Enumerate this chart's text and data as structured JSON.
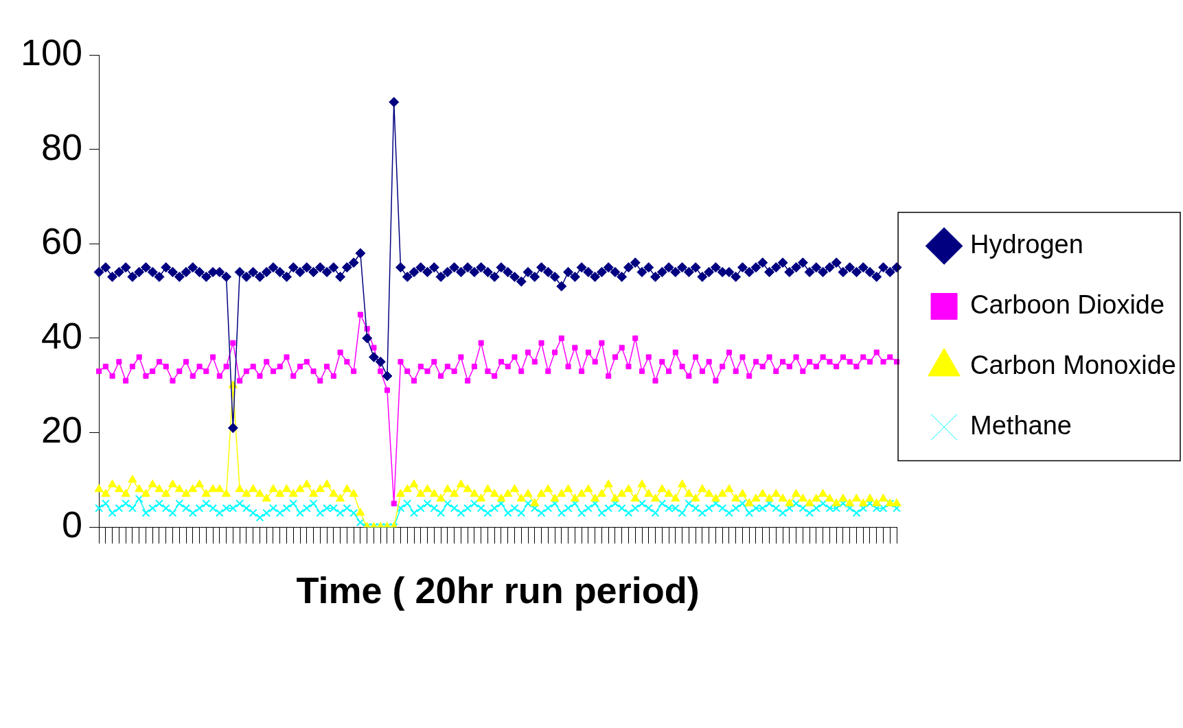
{
  "chart_data": {
    "type": "line",
    "xlabel": "Time ( 20hr run period)",
    "categories": [
      null,
      null,
      null,
      null,
      null,
      null,
      null,
      null,
      null,
      null,
      null,
      null,
      null,
      null,
      null,
      null,
      null,
      null,
      null,
      null,
      null,
      null,
      null,
      null,
      null,
      null,
      null,
      null,
      null,
      null,
      null,
      null,
      null,
      null,
      null,
      null,
      null,
      null,
      null,
      null,
      null,
      null,
      null,
      null,
      null,
      null,
      null,
      null,
      null,
      null,
      null,
      null,
      null,
      null,
      null,
      null,
      null,
      null,
      null,
      null,
      null,
      null,
      null,
      null,
      null,
      null,
      null,
      null,
      null,
      null,
      null,
      null,
      null,
      null,
      null,
      null,
      null,
      null,
      null,
      null,
      null,
      null,
      null,
      null,
      null,
      null,
      null,
      null,
      null,
      null,
      null,
      null,
      null,
      null,
      null,
      null,
      null,
      null,
      null,
      null,
      null,
      null,
      null,
      null,
      null,
      null,
      null,
      null,
      null,
      null,
      null,
      null,
      null,
      null,
      null,
      null,
      null,
      null,
      null,
      null
    ],
    "ylim": [
      0,
      100
    ],
    "yticks": [
      0,
      20,
      40,
      60,
      80,
      100
    ],
    "tick_labels": "y",
    "legend": "right",
    "line_style": "solid",
    "series": [
      {
        "name": "Hydrogen",
        "color": "#000080",
        "marker": "diamond",
        "values": [
          54,
          55,
          53,
          54,
          55,
          53,
          54,
          55,
          54,
          53,
          55,
          54,
          53,
          54,
          55,
          54,
          53,
          54,
          54,
          53,
          21,
          54,
          53,
          54,
          53,
          54,
          55,
          54,
          53,
          55,
          54,
          55,
          54,
          55,
          54,
          55,
          53,
          55,
          56,
          58,
          40,
          36,
          35,
          32,
          90,
          55,
          53,
          54,
          55,
          54,
          55,
          53,
          54,
          55,
          54,
          55,
          54,
          55,
          54,
          53,
          55,
          54,
          53,
          52,
          54,
          53,
          55,
          54,
          53,
          51,
          54,
          53,
          55,
          54,
          53,
          54,
          55,
          54,
          53,
          55,
          56,
          54,
          55,
          53,
          54,
          55,
          54,
          55,
          54,
          55,
          53,
          54,
          55,
          54,
          54,
          53,
          55,
          54,
          55,
          56,
          54,
          55,
          56,
          54,
          55,
          56,
          54,
          55,
          54,
          55,
          56,
          54,
          55,
          54,
          55,
          54,
          53,
          55,
          54,
          55
        ]
      },
      {
        "name": "Carboon Dioxide",
        "color": "#ff00ff",
        "marker": "square",
        "values": [
          33,
          34,
          32,
          35,
          31,
          34,
          36,
          32,
          33,
          35,
          34,
          31,
          33,
          35,
          32,
          34,
          33,
          36,
          32,
          34,
          39,
          31,
          33,
          34,
          32,
          35,
          33,
          34,
          36,
          32,
          34,
          35,
          33,
          31,
          34,
          32,
          37,
          35,
          33,
          45,
          42,
          38,
          33,
          29,
          5,
          35,
          33,
          31,
          34,
          33,
          35,
          32,
          34,
          33,
          36,
          31,
          34,
          39,
          33,
          32,
          35,
          34,
          36,
          33,
          37,
          35,
          39,
          33,
          37,
          40,
          34,
          38,
          33,
          37,
          35,
          39,
          32,
          36,
          38,
          34,
          40,
          33,
          36,
          31,
          35,
          33,
          37,
          34,
          32,
          36,
          33,
          35,
          31,
          34,
          37,
          33,
          36,
          32,
          35,
          34,
          36,
          33,
          35,
          34,
          36,
          33,
          35,
          34,
          36,
          35,
          34,
          36,
          35,
          34,
          36,
          35,
          37,
          35,
          36,
          35
        ]
      },
      {
        "name": "Carbon Monoxide",
        "color": "#ffff00",
        "marker": "triangle",
        "values": [
          8,
          7,
          9,
          8,
          7,
          10,
          8,
          7,
          9,
          8,
          7,
          9,
          8,
          7,
          8,
          9,
          7,
          8,
          8,
          7,
          30,
          8,
          7,
          8,
          7,
          6,
          8,
          7,
          8,
          7,
          8,
          9,
          7,
          8,
          9,
          7,
          6,
          8,
          7,
          3,
          0,
          0,
          0,
          0,
          0,
          7,
          8,
          9,
          7,
          8,
          7,
          6,
          8,
          7,
          9,
          8,
          7,
          6,
          8,
          7,
          6,
          7,
          8,
          6,
          7,
          5,
          7,
          8,
          6,
          7,
          8,
          6,
          7,
          8,
          6,
          7,
          9,
          6,
          7,
          8,
          6,
          9,
          7,
          6,
          8,
          7,
          6,
          9,
          7,
          6,
          8,
          7,
          6,
          7,
          8,
          6,
          7,
          5,
          6,
          7,
          6,
          7,
          6,
          5,
          7,
          6,
          5,
          6,
          7,
          6,
          5,
          6,
          5,
          6,
          5,
          6,
          5,
          6,
          5,
          5
        ]
      },
      {
        "name": "Methane",
        "color": "#00ffff",
        "marker": "cross",
        "values": [
          4,
          5,
          3,
          4,
          5,
          4,
          6,
          3,
          4,
          5,
          4,
          3,
          5,
          4,
          3,
          4,
          5,
          4,
          3,
          4,
          4,
          5,
          4,
          3,
          2,
          3,
          4,
          3,
          4,
          5,
          3,
          4,
          5,
          3,
          4,
          4,
          3,
          4,
          3,
          1,
          0,
          0,
          0,
          0,
          0,
          4,
          5,
          3,
          4,
          5,
          4,
          3,
          5,
          4,
          3,
          4,
          5,
          4,
          3,
          4,
          5,
          3,
          4,
          3,
          5,
          4,
          3,
          4,
          5,
          3,
          4,
          5,
          3,
          4,
          5,
          3,
          4,
          5,
          4,
          3,
          4,
          5,
          4,
          3,
          5,
          4,
          4,
          3,
          5,
          4,
          3,
          4,
          5,
          4,
          3,
          4,
          5,
          3,
          4,
          4,
          5,
          4,
          3,
          4,
          5,
          4,
          3,
          4,
          5,
          4,
          4,
          5,
          4,
          3,
          4,
          5,
          4,
          4,
          5,
          4
        ]
      }
    ]
  }
}
